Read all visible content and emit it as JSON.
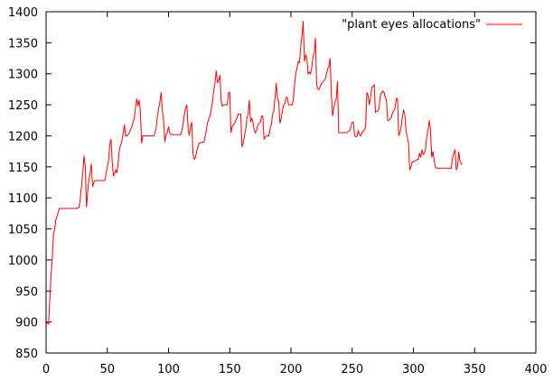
{
  "chart_data": {
    "type": "line",
    "title": "",
    "xlabel": "",
    "ylabel": "",
    "xlim": [
      0,
      400
    ],
    "ylim": [
      850,
      1400
    ],
    "x_ticks": [
      0,
      50,
      100,
      150,
      200,
      250,
      300,
      350,
      400
    ],
    "y_ticks": [
      850,
      900,
      950,
      1000,
      1050,
      1100,
      1150,
      1200,
      1250,
      1300,
      1350,
      1400
    ],
    "grid": false,
    "legend_position": "top-right",
    "series": [
      {
        "name": "\"plant eyes allocations\"",
        "color": "#ff0000",
        "points": [
          [
            0,
            895
          ],
          [
            1,
            900
          ],
          [
            2,
            897
          ],
          [
            3,
            935
          ],
          [
            4,
            975
          ],
          [
            5,
            1000
          ],
          [
            6,
            1040
          ],
          [
            7,
            1050
          ],
          [
            8,
            1065
          ],
          [
            9,
            1070
          ],
          [
            10,
            1078
          ],
          [
            11,
            1083
          ],
          [
            12,
            1083
          ],
          [
            15,
            1083
          ],
          [
            20,
            1083
          ],
          [
            25,
            1083
          ],
          [
            27,
            1085
          ],
          [
            28,
            1100
          ],
          [
            29,
            1120
          ],
          [
            30,
            1140
          ],
          [
            31,
            1168
          ],
          [
            32,
            1150
          ],
          [
            33,
            1085
          ],
          [
            34,
            1110
          ],
          [
            35,
            1130
          ],
          [
            36,
            1140
          ],
          [
            37,
            1155
          ],
          [
            38,
            1118
          ],
          [
            39,
            1125
          ],
          [
            40,
            1128
          ],
          [
            45,
            1128
          ],
          [
            48,
            1128
          ],
          [
            49,
            1140
          ],
          [
            50,
            1150
          ],
          [
            51,
            1160
          ],
          [
            52,
            1185
          ],
          [
            53,
            1195
          ],
          [
            54,
            1160
          ],
          [
            55,
            1135
          ],
          [
            56,
            1140
          ],
          [
            57,
            1145
          ],
          [
            58,
            1140
          ],
          [
            59,
            1160
          ],
          [
            60,
            1180
          ],
          [
            61,
            1185
          ],
          [
            62,
            1192
          ],
          [
            63,
            1205
          ],
          [
            64,
            1218
          ],
          [
            65,
            1200
          ],
          [
            66,
            1200
          ],
          [
            68,
            1205
          ],
          [
            70,
            1215
          ],
          [
            72,
            1228
          ],
          [
            74,
            1260
          ],
          [
            75,
            1248
          ],
          [
            76,
            1258
          ],
          [
            77,
            1240
          ],
          [
            78,
            1188
          ],
          [
            79,
            1200
          ],
          [
            80,
            1200
          ],
          [
            85,
            1200
          ],
          [
            88,
            1200
          ],
          [
            89,
            1205
          ],
          [
            90,
            1215
          ],
          [
            91,
            1232
          ],
          [
            92,
            1245
          ],
          [
            93,
            1255
          ],
          [
            94,
            1270
          ],
          [
            95,
            1240
          ],
          [
            96,
            1225
          ],
          [
            97,
            1190
          ],
          [
            98,
            1202
          ],
          [
            99,
            1205
          ],
          [
            100,
            1215
          ],
          [
            101,
            1205
          ],
          [
            102,
            1202
          ],
          [
            105,
            1202
          ],
          [
            110,
            1202
          ],
          [
            111,
            1210
          ],
          [
            112,
            1220
          ],
          [
            113,
            1235
          ],
          [
            114,
            1245
          ],
          [
            115,
            1250
          ],
          [
            116,
            1212
          ],
          [
            117,
            1200
          ],
          [
            118,
            1215
          ],
          [
            119,
            1222
          ],
          [
            120,
            1170
          ],
          [
            121,
            1162
          ],
          [
            122,
            1165
          ],
          [
            123,
            1175
          ],
          [
            124,
            1182
          ],
          [
            125,
            1188
          ],
          [
            128,
            1190
          ],
          [
            129,
            1190
          ],
          [
            130,
            1200
          ],
          [
            131,
            1210
          ],
          [
            132,
            1222
          ],
          [
            133,
            1228
          ],
          [
            134,
            1232
          ],
          [
            135,
            1245
          ],
          [
            136,
            1255
          ],
          [
            137,
            1275
          ],
          [
            138,
            1285
          ],
          [
            139,
            1305
          ],
          [
            140,
            1285
          ],
          [
            141,
            1290
          ],
          [
            142,
            1298
          ],
          [
            143,
            1255
          ],
          [
            144,
            1248
          ],
          [
            145,
            1250
          ],
          [
            148,
            1250
          ],
          [
            149,
            1270
          ],
          [
            150,
            1270
          ],
          [
            151,
            1205
          ],
          [
            152,
            1215
          ],
          [
            153,
            1218
          ],
          [
            154,
            1220
          ],
          [
            156,
            1230
          ],
          [
            157,
            1235
          ],
          [
            159,
            1235
          ],
          [
            160,
            1182
          ],
          [
            161,
            1188
          ],
          [
            162,
            1200
          ],
          [
            163,
            1210
          ],
          [
            164,
            1228
          ],
          [
            165,
            1235
          ],
          [
            166,
            1258
          ],
          [
            167,
            1222
          ],
          [
            168,
            1228
          ],
          [
            169,
            1222
          ],
          [
            170,
            1210
          ],
          [
            171,
            1205
          ],
          [
            172,
            1210
          ],
          [
            173,
            1218
          ],
          [
            174,
            1220
          ],
          [
            175,
            1222
          ],
          [
            176,
            1232
          ],
          [
            177,
            1232
          ],
          [
            178,
            1195
          ],
          [
            179,
            1198
          ],
          [
            180,
            1200
          ],
          [
            182,
            1200
          ],
          [
            183,
            1212
          ],
          [
            184,
            1218
          ],
          [
            185,
            1235
          ],
          [
            186,
            1240
          ],
          [
            187,
            1262
          ],
          [
            188,
            1285
          ],
          [
            189,
            1260
          ],
          [
            190,
            1255
          ],
          [
            191,
            1220
          ],
          [
            192,
            1228
          ],
          [
            193,
            1240
          ],
          [
            194,
            1250
          ],
          [
            195,
            1252
          ],
          [
            196,
            1262
          ],
          [
            197,
            1262
          ],
          [
            198,
            1250
          ],
          [
            199,
            1250
          ],
          [
            201,
            1250
          ],
          [
            202,
            1260
          ],
          [
            203,
            1285
          ],
          [
            204,
            1300
          ],
          [
            205,
            1310
          ],
          [
            206,
            1320
          ],
          [
            207,
            1318
          ],
          [
            208,
            1345
          ],
          [
            209,
            1360
          ],
          [
            210,
            1385
          ],
          [
            211,
            1320
          ],
          [
            212,
            1330
          ],
          [
            213,
            1325
          ],
          [
            214,
            1300
          ],
          [
            215,
            1303
          ],
          [
            216,
            1300
          ],
          [
            217,
            1310
          ],
          [
            218,
            1328
          ],
          [
            219,
            1333
          ],
          [
            220,
            1358
          ],
          [
            221,
            1282
          ],
          [
            222,
            1275
          ],
          [
            223,
            1275
          ],
          [
            225,
            1285
          ],
          [
            227,
            1288
          ],
          [
            228,
            1292
          ],
          [
            229,
            1300
          ],
          [
            230,
            1308
          ],
          [
            231,
            1312
          ],
          [
            232,
            1325
          ],
          [
            233,
            1268
          ],
          [
            234,
            1232
          ],
          [
            235,
            1245
          ],
          [
            236,
            1255
          ],
          [
            237,
            1260
          ],
          [
            238,
            1288
          ],
          [
            239,
            1205
          ],
          [
            240,
            1205
          ],
          [
            245,
            1205
          ],
          [
            248,
            1208
          ],
          [
            249,
            1215
          ],
          [
            250,
            1222
          ],
          [
            251,
            1222
          ],
          [
            252,
            1200
          ],
          [
            253,
            1198
          ],
          [
            254,
            1200
          ],
          [
            255,
            1208
          ],
          [
            256,
            1202
          ],
          [
            257,
            1200
          ],
          [
            258,
            1205
          ],
          [
            259,
            1208
          ],
          [
            260,
            1210
          ],
          [
            261,
            1215
          ],
          [
            262,
            1270
          ],
          [
            263,
            1265
          ],
          [
            264,
            1250
          ],
          [
            265,
            1262
          ],
          [
            266,
            1278
          ],
          [
            267,
            1280
          ],
          [
            268,
            1282
          ],
          [
            269,
            1238
          ],
          [
            270,
            1240
          ],
          [
            271,
            1240
          ],
          [
            272,
            1245
          ],
          [
            273,
            1265
          ],
          [
            274,
            1270
          ],
          [
            275,
            1272
          ],
          [
            276,
            1270
          ],
          [
            277,
            1262
          ],
          [
            278,
            1258
          ],
          [
            279,
            1225
          ],
          [
            280,
            1225
          ],
          [
            282,
            1230
          ],
          [
            283,
            1238
          ],
          [
            284,
            1240
          ],
          [
            285,
            1245
          ],
          [
            286,
            1260
          ],
          [
            287,
            1260
          ],
          [
            288,
            1200
          ],
          [
            289,
            1205
          ],
          [
            290,
            1215
          ],
          [
            291,
            1230
          ],
          [
            292,
            1242
          ],
          [
            293,
            1235
          ],
          [
            294,
            1208
          ],
          [
            295,
            1198
          ],
          [
            296,
            1188
          ],
          [
            297,
            1145
          ],
          [
            298,
            1150
          ],
          [
            299,
            1158
          ],
          [
            300,
            1158
          ],
          [
            301,
            1160
          ],
          [
            302,
            1160
          ],
          [
            303,
            1162
          ],
          [
            304,
            1162
          ],
          [
            305,
            1172
          ],
          [
            306,
            1165
          ],
          [
            307,
            1178
          ],
          [
            308,
            1170
          ],
          [
            309,
            1172
          ],
          [
            310,
            1180
          ],
          [
            311,
            1200
          ],
          [
            312,
            1210
          ],
          [
            313,
            1225
          ],
          [
            314,
            1208
          ],
          [
            315,
            1165
          ],
          [
            316,
            1175
          ],
          [
            317,
            1160
          ],
          [
            318,
            1150
          ],
          [
            319,
            1148
          ],
          [
            325,
            1148
          ],
          [
            330,
            1148
          ],
          [
            331,
            1148
          ],
          [
            332,
            1165
          ],
          [
            333,
            1172
          ],
          [
            334,
            1178
          ],
          [
            335,
            1145
          ],
          [
            336,
            1150
          ],
          [
            337,
            1175
          ],
          [
            338,
            1160
          ],
          [
            339,
            1155
          ],
          [
            340,
            1155
          ]
        ]
      }
    ]
  }
}
